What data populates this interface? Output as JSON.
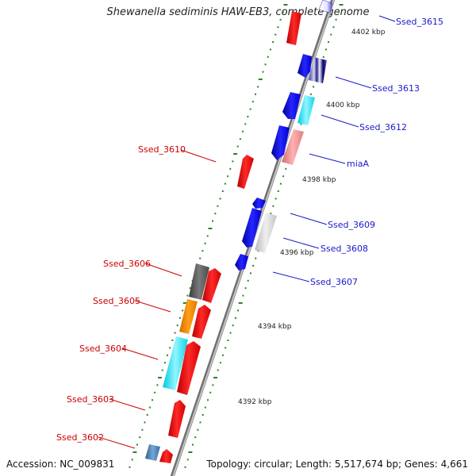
{
  "title": "Shewanella sediminis HAW-EB3, complete genome",
  "accession": "Accession: NC_009831",
  "topology": "Topology: circular; Length: 5,517,674 bp; Genes: 4,661",
  "colors": {
    "forward_strand": "#ff0000",
    "reverse_strand": "#0000ee",
    "forward_label": "#cc0000",
    "reverse_label": "#1a1acc",
    "backbone": "#888888",
    "tick": "#228822"
  },
  "scale_labels": [
    "4392 kbp",
    "4394 kbp",
    "4396 kbp",
    "4398 kbp",
    "4400 kbp",
    "4402 kbp"
  ],
  "gene_labels": [
    {
      "id": "Ssed_3615",
      "strand": "reverse"
    },
    {
      "id": "Ssed_3613",
      "strand": "reverse"
    },
    {
      "id": "Ssed_3612",
      "strand": "reverse"
    },
    {
      "id": "miaA",
      "strand": "reverse"
    },
    {
      "id": "Ssed_3609",
      "strand": "reverse"
    },
    {
      "id": "Ssed_3608",
      "strand": "reverse"
    },
    {
      "id": "Ssed_3607",
      "strand": "reverse"
    },
    {
      "id": "Ssed_3610",
      "strand": "forward"
    },
    {
      "id": "Ssed_3606",
      "strand": "forward"
    },
    {
      "id": "Ssed_3605",
      "strand": "forward"
    },
    {
      "id": "Ssed_3604",
      "strand": "forward"
    },
    {
      "id": "Ssed_3603",
      "strand": "forward"
    },
    {
      "id": "Ssed_3602",
      "strand": "forward"
    }
  ]
}
